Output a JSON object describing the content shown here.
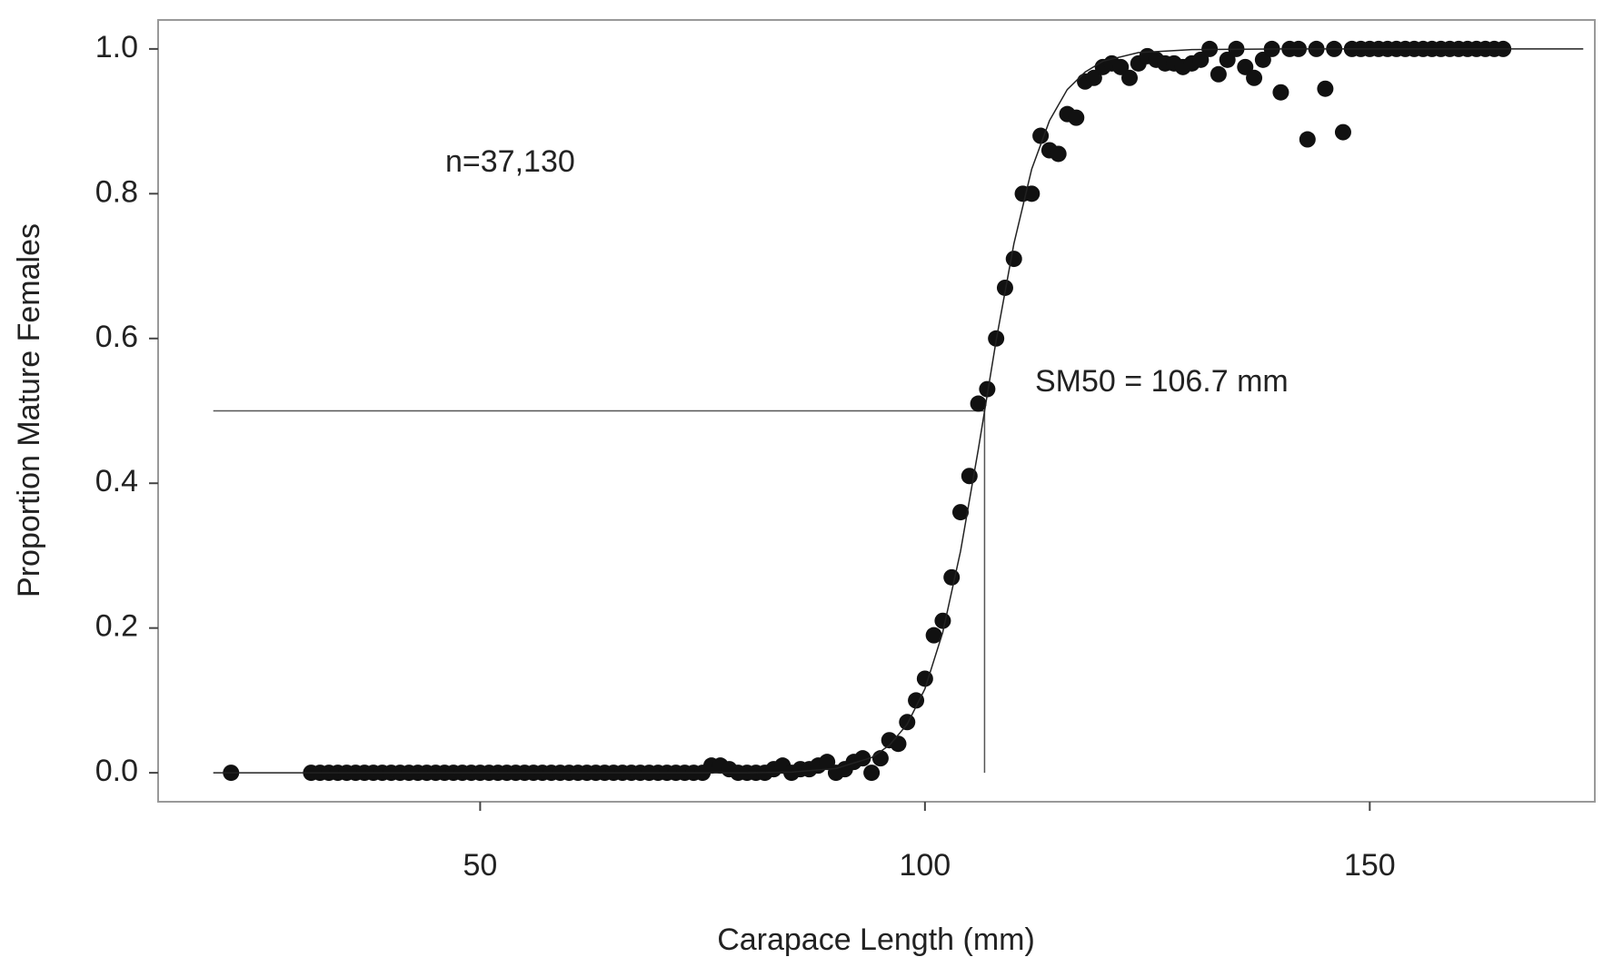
{
  "chart_data": {
    "type": "scatter",
    "xlabel": "Carapace Length (mm)",
    "ylabel": "Proportion Mature Females",
    "annotations": [
      "n=37,130",
      "SM50 = 106.7 mm"
    ],
    "xlim": [
      13.8,
      175.3
    ],
    "ylim": [
      -0.04,
      1.04
    ],
    "xticks": [
      50,
      100,
      150
    ],
    "yticks": [
      {
        "value": 0,
        "label": "0.0"
      },
      0.2,
      0.4,
      0.6,
      0.8,
      {
        "value": 1,
        "label": "1.0"
      }
    ],
    "grid": false,
    "series": [
      {
        "color": "#111111",
        "x": [
          22,
          31,
          32,
          33,
          34,
          35,
          36,
          37,
          38,
          39,
          40,
          41,
          42,
          43,
          44,
          45,
          46,
          47,
          48,
          49,
          50,
          51,
          52,
          53,
          54,
          55,
          56,
          57,
          58,
          59,
          60,
          61,
          62,
          63,
          64,
          65,
          66,
          67,
          68,
          69,
          70,
          71,
          72,
          73,
          74,
          75,
          76,
          77,
          78,
          79,
          80,
          81,
          82,
          83,
          84,
          85,
          86,
          87,
          88,
          89,
          90,
          91,
          92,
          93,
          94,
          95,
          96,
          97,
          98,
          99,
          100,
          101,
          102,
          103,
          104,
          105,
          106,
          107,
          108,
          109,
          110,
          111,
          112,
          113,
          114,
          115,
          116,
          117,
          118,
          119,
          120,
          121,
          122,
          123,
          124,
          125,
          126,
          127,
          128,
          129,
          130,
          131,
          132,
          133,
          134,
          135,
          136,
          137,
          138,
          139,
          140,
          141,
          142,
          143,
          144,
          145,
          146,
          147,
          148,
          149,
          150,
          151,
          152,
          153,
          154,
          155,
          156,
          157,
          158,
          159,
          160,
          161,
          162,
          163,
          164,
          165
        ],
        "values": [
          0,
          0,
          0,
          0,
          0,
          0,
          0,
          0,
          0,
          0,
          0,
          0,
          0,
          0,
          0,
          0,
          0,
          0,
          0,
          0,
          0,
          0,
          0,
          0,
          0,
          0,
          0,
          0,
          0,
          0,
          0,
          0,
          0,
          0,
          0,
          0,
          0,
          0,
          0,
          0,
          0,
          0,
          0,
          0,
          0,
          0,
          0.01,
          0.01,
          0.005,
          0,
          0,
          0,
          0,
          0.005,
          0.01,
          0,
          0.005,
          0.005,
          0.01,
          0.015,
          0,
          0.005,
          0.015,
          0.02,
          0,
          0.02,
          0.045,
          0.04,
          0.07,
          0.1,
          0.13,
          0.19,
          0.21,
          0.27,
          0.36,
          0.41,
          0.51,
          0.53,
          0.6,
          0.67,
          0.71,
          0.8,
          0.8,
          0.88,
          0.86,
          0.855,
          0.91,
          0.905,
          0.955,
          0.96,
          0.975,
          0.98,
          0.975,
          0.96,
          0.98,
          0.99,
          0.985,
          0.98,
          0.98,
          0.975,
          0.98,
          0.985,
          1,
          0.965,
          0.985,
          1,
          0.975,
          0.96,
          0.985,
          1,
          0.94,
          1,
          1,
          0.875,
          1,
          0.945,
          1,
          0.885,
          1,
          1,
          1,
          1,
          1,
          1,
          1,
          1,
          1,
          1,
          1,
          1,
          1,
          1,
          1,
          1,
          1,
          1
        ]
      },
      {
        "type": "line",
        "color": "#222222",
        "x": [
          20,
          80,
          85,
          90,
          94,
          96,
          98,
          100,
          102,
          104,
          106,
          108,
          110,
          112,
          114,
          116,
          118,
          120,
          124,
          130,
          140,
          174
        ],
        "values": [
          0,
          0,
          0.001,
          0.006,
          0.021,
          0.038,
          0.067,
          0.116,
          0.194,
          0.306,
          0.447,
          0.597,
          0.731,
          0.834,
          0.901,
          0.944,
          0.968,
          0.983,
          0.995,
          0.999,
          1,
          1
        ]
      }
    ],
    "reference_lines": [
      {
        "x": [
          20,
          106.7
        ],
        "y": [
          0.5,
          0.5
        ]
      },
      {
        "x": [
          106.7,
          106.7
        ],
        "y": [
          0.5,
          0
        ]
      }
    ]
  }
}
